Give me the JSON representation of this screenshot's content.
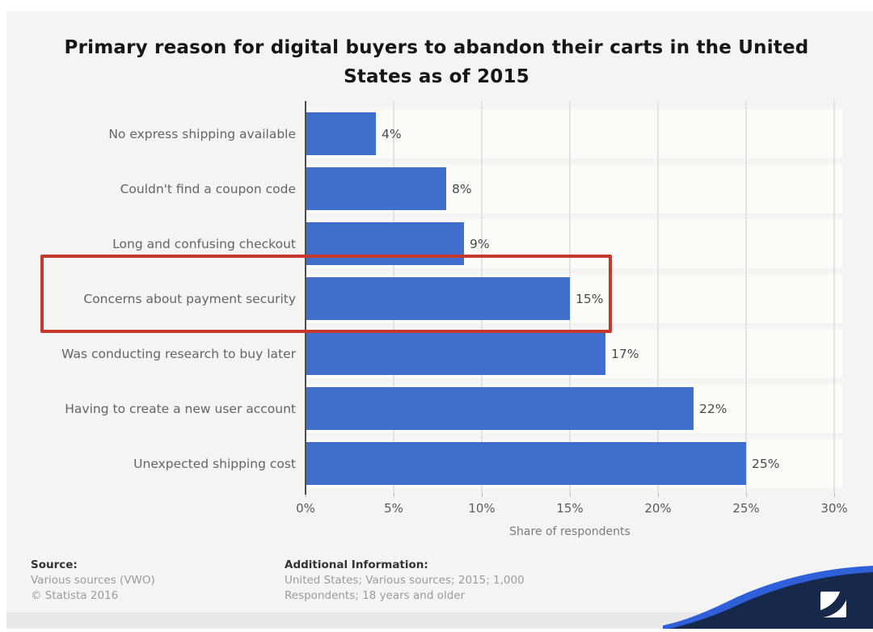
{
  "header": {
    "title_line1": "Primary reason for digital buyers to abandon their carts in the United",
    "title_line2": "States as of 2015"
  },
  "chart_data": {
    "type": "bar",
    "orientation": "horizontal",
    "title": "Primary reason for digital buyers to abandon their carts in the United States as of 2015",
    "categories": [
      "No express shipping available",
      "Couldn't find a coupon code",
      "Long and confusing checkout",
      "Concerns about payment security",
      "Was conducting research to buy later",
      "Having to create a new user account",
      "Unexpected shipping cost"
    ],
    "values": [
      4,
      8,
      9,
      15,
      17,
      22,
      25
    ],
    "value_suffix": "%",
    "x_ticks": [
      "0%",
      "5%",
      "10%",
      "15%",
      "20%",
      "25%",
      "30%"
    ],
    "xlim": [
      0,
      30
    ],
    "xlabel": "Share of respondents",
    "grid": true,
    "legend": "none",
    "bar_color": "#3f6ecd",
    "annotation": {
      "type": "highlight-box",
      "category": "Concerns about payment security",
      "color": "#c4392b"
    }
  },
  "footer": {
    "source_label": "Source:",
    "source_line1": "Various sources (VWO)",
    "source_line2": "© Statista 2016",
    "additional_label": "Additional Information:",
    "additional_text": "United States; Various sources; 2015; 1,000 Respondents; 18 years and older"
  },
  "branding": {
    "logo_text": "statista",
    "navy_color": "#16294a",
    "accent_color": "#2f5fd9"
  }
}
